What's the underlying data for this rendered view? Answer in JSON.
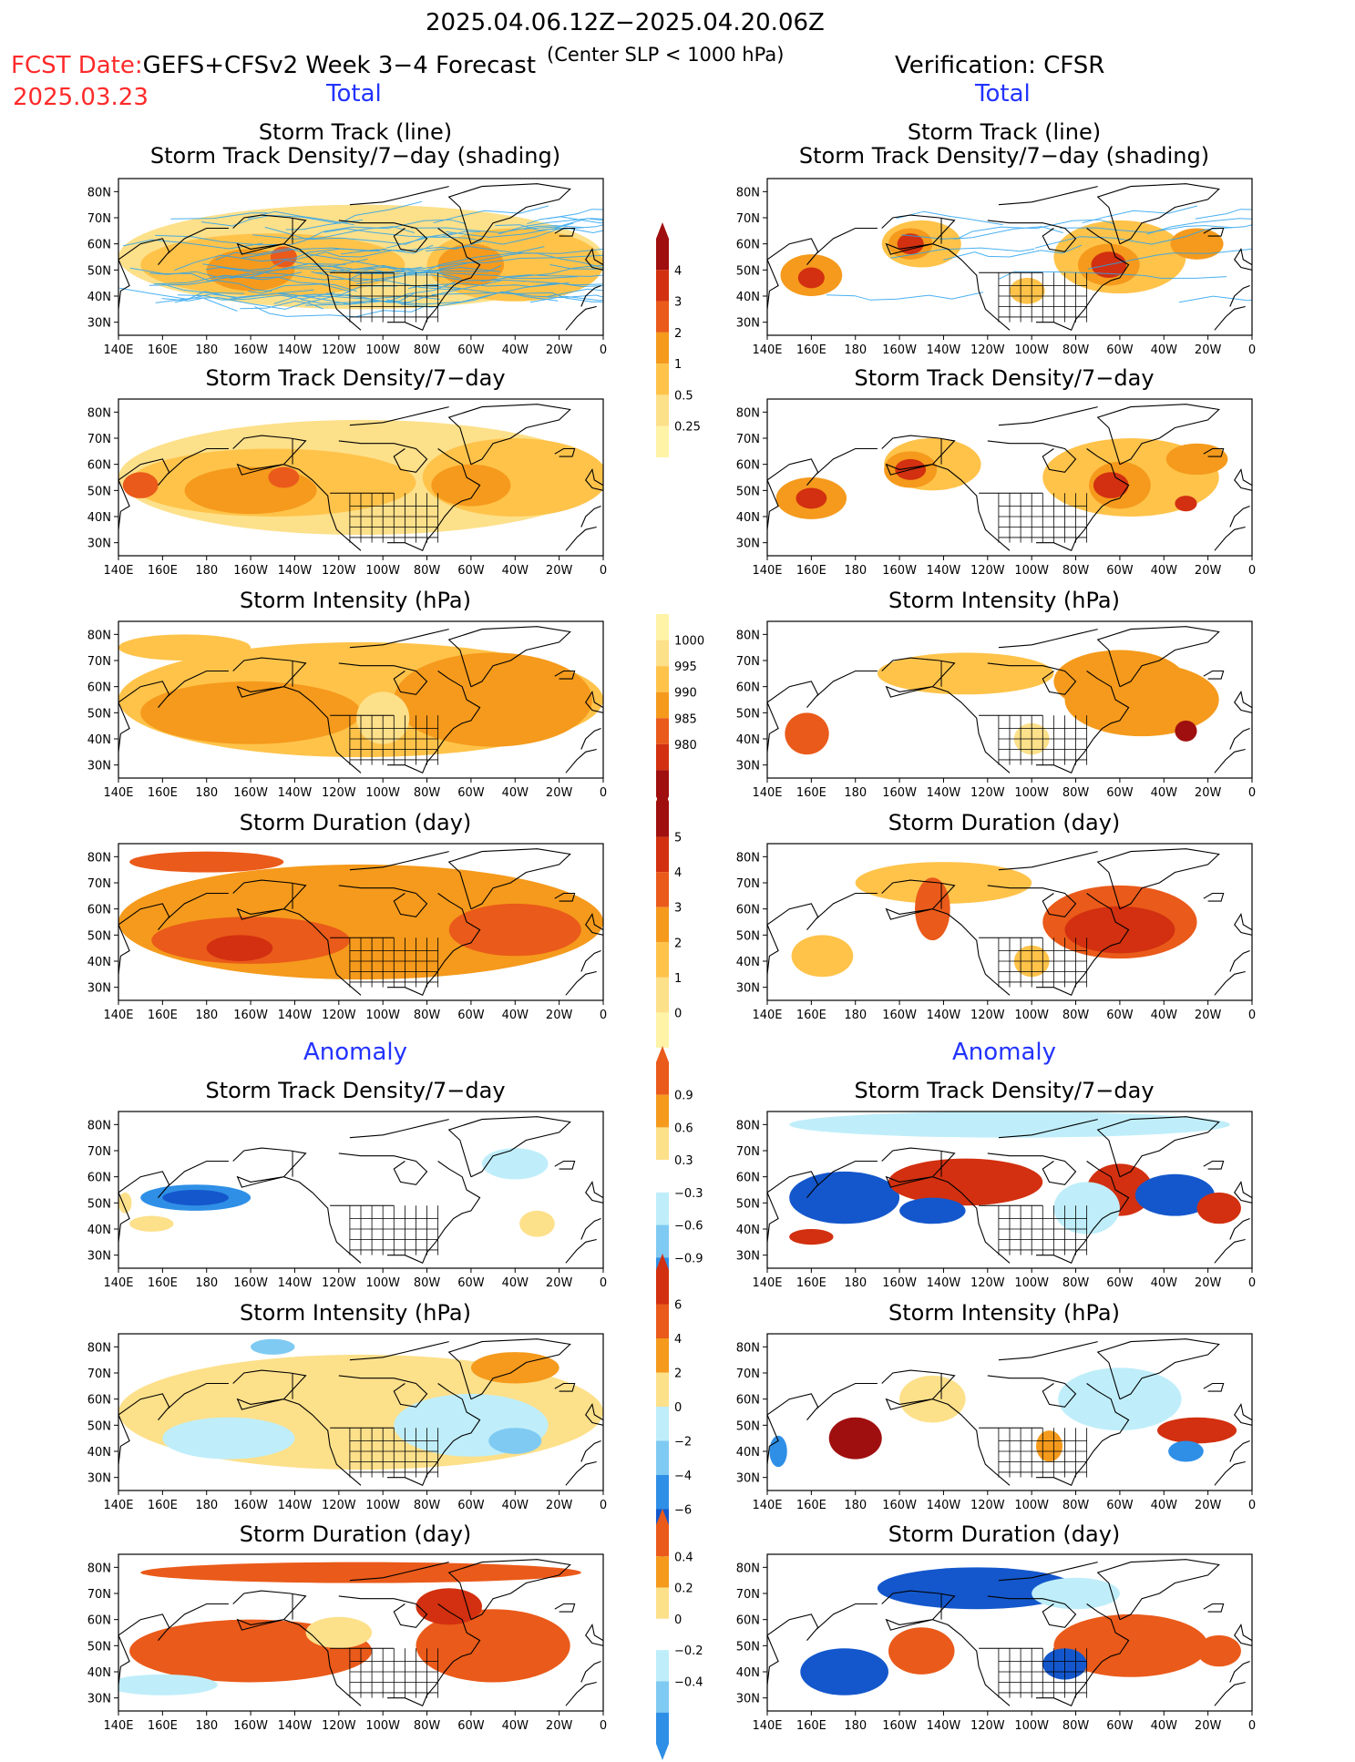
{
  "header": {
    "date_range": "2025.04.06.12Z−2025.04.20.06Z",
    "subtitle": "(Center SLP < 1000 hPa)",
    "fcst_label": "FCST Date:",
    "fcst_date": "2025.03.23",
    "model": "GEFS+CFSv2 Week 3−4 Forecast",
    "verification": "Verification: CFSR"
  },
  "sections": {
    "total_left": "Total",
    "total_right": "Total",
    "anomaly_left": "Anomaly",
    "anomaly_right": "Anomaly"
  },
  "panel_titles": {
    "track_line": "Storm Track (line)",
    "track_shading": "Storm Track Density/7−day (shading)",
    "density": "Storm Track Density/7−day",
    "intensity": "Storm Intensity (hPa)",
    "duration": "Storm Duration (day)"
  },
  "axes": {
    "lon_labels": [
      "140E",
      "160E",
      "180",
      "160W",
      "140W",
      "120W",
      "100W",
      "80W",
      "60W",
      "40W",
      "20W",
      "0"
    ],
    "lat_labels": [
      "80N",
      "70N",
      "60N",
      "50N",
      "40N",
      "30N"
    ]
  },
  "colors": {
    "yellow_light": "#fff3a8",
    "yellow": "#fde08a",
    "orange_light": "#ffc34a",
    "orange": "#f59a1c",
    "orange_red": "#ea5a1a",
    "red": "#d23010",
    "dark_red": "#a00f0f",
    "blue_light": "#bfeefa",
    "blue_mid": "#7fcaf2",
    "blue": "#2f8fe6",
    "blue_dark": "#1457cc",
    "track_line": "#29a3f0"
  },
  "colorbars": [
    {
      "name": "density-total",
      "labels": [
        "4",
        "3",
        "2",
        "1",
        "0.5",
        "0.25"
      ]
    },
    {
      "name": "intensity-total",
      "labels": [
        "1000",
        "995",
        "990",
        "985",
        "980"
      ]
    },
    {
      "name": "duration-total",
      "labels": [
        "5",
        "4",
        "3",
        "2",
        "1",
        "0"
      ]
    },
    {
      "name": "density-anomaly",
      "labels": [
        "0.9",
        "0.6",
        "0.3",
        "−0.3",
        "−0.6",
        "−0.9"
      ]
    },
    {
      "name": "intensity-anomaly",
      "labels": [
        "6",
        "4",
        "2",
        "0",
        "−2",
        "−4",
        "−6"
      ]
    },
    {
      "name": "duration-anomaly",
      "labels": [
        "0.4",
        "0.2",
        "0",
        "−0.2",
        "−0.4"
      ]
    }
  ]
}
